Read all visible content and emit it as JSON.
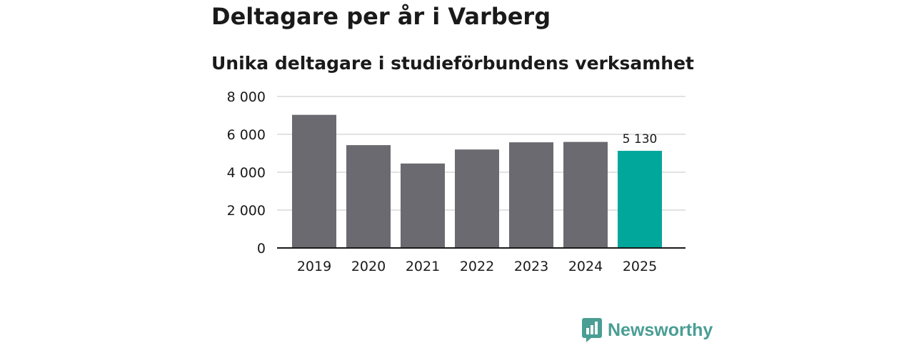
{
  "chart_data": {
    "type": "bar",
    "title": "Deltagare per år i Varberg",
    "subtitle": "Unika deltagare i studieförbundens verksamhet",
    "categories": [
      "2019",
      "2020",
      "2021",
      "2022",
      "2023",
      "2024",
      "2025"
    ],
    "values": [
      7030,
      5430,
      4460,
      5200,
      5580,
      5600,
      5130
    ],
    "ylim": [
      0,
      8000
    ],
    "yticks": [
      0,
      2000,
      4000,
      6000,
      8000
    ],
    "ytick_labels": [
      "0",
      "2 000",
      "4 000",
      "6 000",
      "8 000"
    ],
    "data_labels": [
      {
        "category": "2025",
        "text": "5 130"
      }
    ],
    "grid": true,
    "colors": {
      "default": "#6b6a70",
      "highlight": "#00a79a"
    },
    "highlight_index": 6,
    "xlabel": "",
    "ylabel": ""
  },
  "brand": {
    "name": "Newsworthy",
    "icon": "newsworthy-logo-icon",
    "color": "#4a9e94"
  }
}
